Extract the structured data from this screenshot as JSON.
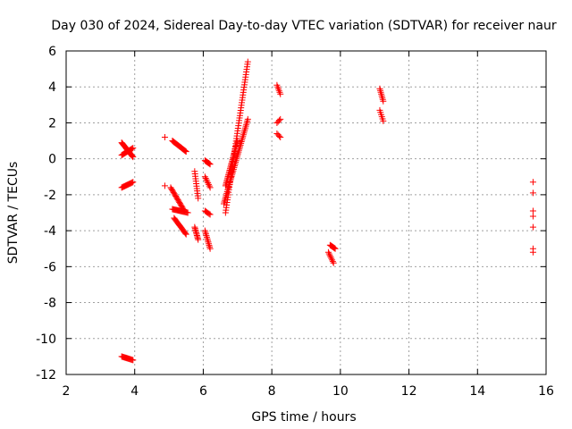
{
  "chart_data": {
    "type": "scatter",
    "title": "Day 030 of 2024, Sidereal Day-to-day VTEC variation (SDTVAR) for receiver naur",
    "xlabel": "GPS time / hours",
    "ylabel": "SDTVAR / TECUs",
    "xlim": [
      2,
      16
    ],
    "ylim": [
      -12,
      6
    ],
    "xticks": [
      "2",
      "4",
      "6",
      "8",
      "10",
      "12",
      "14",
      "16"
    ],
    "yticks": [
      "6",
      "4",
      "2",
      "0",
      "-2",
      "-4",
      "-6",
      "-8",
      "-10",
      "-12"
    ],
    "grid": true,
    "marker": "plus",
    "marker_color": "#ff0000",
    "segments": [
      {
        "x0": 3.62,
        "y0": 0.9,
        "x1": 3.95,
        "y1": 0.1,
        "n": 22
      },
      {
        "x0": 3.62,
        "y0": 0.2,
        "x1": 3.95,
        "y1": 0.6,
        "n": 14
      },
      {
        "x0": 3.62,
        "y0": -1.6,
        "x1": 3.95,
        "y1": -1.3,
        "n": 14
      },
      {
        "x0": 3.62,
        "y0": -11.0,
        "x1": 3.95,
        "y1": -11.2,
        "n": 14
      },
      {
        "x0": 4.88,
        "y0": 1.2,
        "x1": 4.88,
        "y1": 1.2,
        "n": 1
      },
      {
        "x0": 4.88,
        "y0": -1.5,
        "x1": 4.88,
        "y1": -1.5,
        "n": 1
      },
      {
        "x0": 5.1,
        "y0": 1.0,
        "x1": 5.5,
        "y1": 0.4,
        "n": 20
      },
      {
        "x0": 5.05,
        "y0": -1.6,
        "x1": 5.45,
        "y1": -2.9,
        "n": 20
      },
      {
        "x0": 5.1,
        "y0": -2.8,
        "x1": 5.55,
        "y1": -3.0,
        "n": 18
      },
      {
        "x0": 5.15,
        "y0": -3.3,
        "x1": 5.5,
        "y1": -4.2,
        "n": 18
      },
      {
        "x0": 5.75,
        "y0": -0.7,
        "x1": 5.85,
        "y1": -2.2,
        "n": 12
      },
      {
        "x0": 5.75,
        "y0": -3.8,
        "x1": 5.85,
        "y1": -4.5,
        "n": 10
      },
      {
        "x0": 6.05,
        "y0": -0.1,
        "x1": 6.2,
        "y1": -0.3,
        "n": 8
      },
      {
        "x0": 6.05,
        "y0": -1.0,
        "x1": 6.2,
        "y1": -1.6,
        "n": 8
      },
      {
        "x0": 6.05,
        "y0": -2.9,
        "x1": 6.2,
        "y1": -3.1,
        "n": 6
      },
      {
        "x0": 6.05,
        "y0": -4.0,
        "x1": 6.2,
        "y1": -5.0,
        "n": 12
      },
      {
        "x0": 6.65,
        "y0": -3.0,
        "x1": 7.3,
        "y1": 5.4,
        "n": 60
      },
      {
        "x0": 6.6,
        "y0": -2.5,
        "x1": 7.3,
        "y1": 2.2,
        "n": 50
      },
      {
        "x0": 6.65,
        "y0": -1.5,
        "x1": 7.0,
        "y1": 1.0,
        "n": 30
      },
      {
        "x0": 8.15,
        "y0": 4.1,
        "x1": 8.25,
        "y1": 3.6,
        "n": 6
      },
      {
        "x0": 8.15,
        "y0": 2.0,
        "x1": 8.25,
        "y1": 2.2,
        "n": 4
      },
      {
        "x0": 8.15,
        "y0": 1.4,
        "x1": 8.25,
        "y1": 1.2,
        "n": 4
      },
      {
        "x0": 9.7,
        "y0": -4.8,
        "x1": 9.85,
        "y1": -5.0,
        "n": 8
      },
      {
        "x0": 9.65,
        "y0": -5.2,
        "x1": 9.8,
        "y1": -5.8,
        "n": 8
      },
      {
        "x0": 11.15,
        "y0": 3.9,
        "x1": 11.25,
        "y1": 3.2,
        "n": 8
      },
      {
        "x0": 11.15,
        "y0": 2.7,
        "x1": 11.25,
        "y1": 2.1,
        "n": 6
      }
    ],
    "points": [
      [
        15.62,
        -1.3
      ],
      [
        15.62,
        -1.9
      ],
      [
        15.62,
        -2.9
      ],
      [
        15.62,
        -3.2
      ],
      [
        15.62,
        -3.8
      ],
      [
        15.62,
        -5.0
      ],
      [
        15.62,
        -5.2
      ]
    ]
  }
}
